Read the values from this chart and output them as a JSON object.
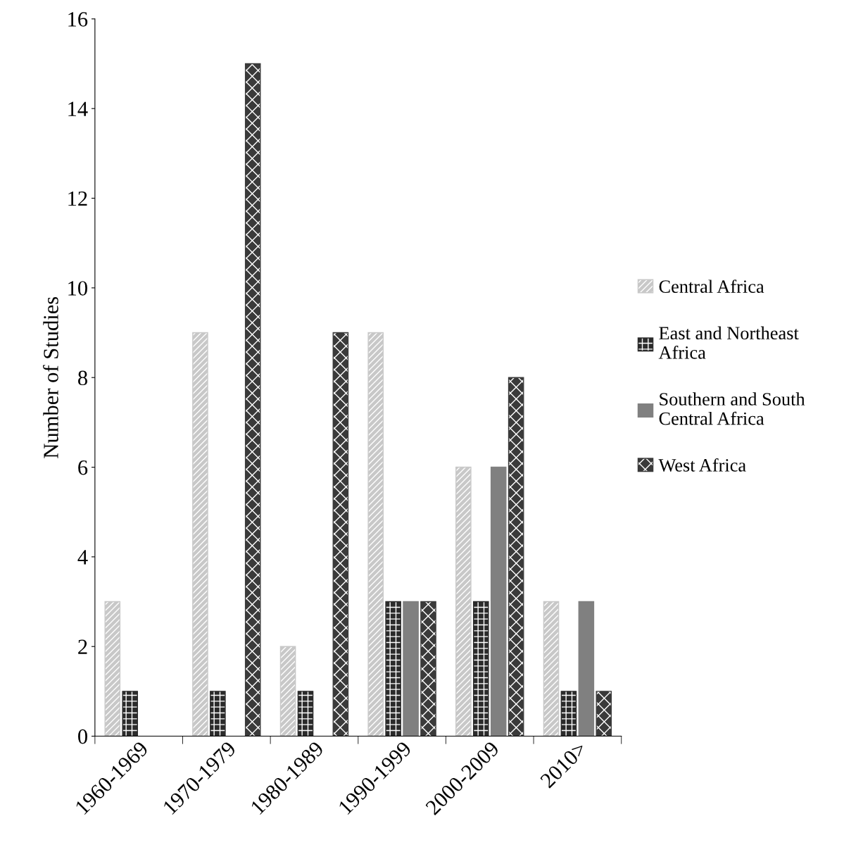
{
  "chart_data": {
    "type": "bar",
    "ylabel": "Number of Studies",
    "categories": [
      "1960-1969",
      "1970-1979",
      "1980-1989",
      "1990-1999",
      "2000-2009",
      "2010>"
    ],
    "series": [
      {
        "name": "Central Africa",
        "color": "#c8c8c8",
        "values": [
          3,
          9,
          2,
          9,
          6,
          3
        ]
      },
      {
        "name": "East and Northeast Africa",
        "color": "#2b2b2b",
        "values": [
          1,
          1,
          1,
          3,
          3,
          1
        ]
      },
      {
        "name": "Southern and South Central Africa",
        "color": "#808080",
        "values": [
          null,
          null,
          null,
          3,
          6,
          3
        ]
      },
      {
        "name": "West Africa",
        "color": "#3a3a3a",
        "values": [
          null,
          15,
          9,
          3,
          8,
          1
        ]
      }
    ],
    "ylim": [
      0,
      16
    ],
    "yticks": [
      0,
      2,
      4,
      6,
      8,
      10,
      12,
      14,
      16
    ],
    "grid": false,
    "legend": "right"
  }
}
